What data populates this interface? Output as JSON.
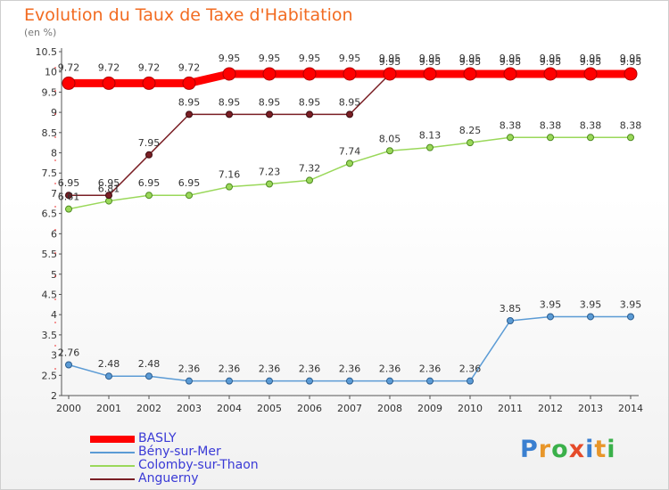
{
  "header": {
    "title": "Evolution du Taux de Taxe d'Habitation",
    "unit": "(en %)"
  },
  "brand": {
    "letters": [
      "P",
      "r",
      "o",
      "x",
      "i",
      "t",
      "i"
    ],
    "colors": [
      "#3a7fd0",
      "#e8962a",
      "#3ab04a",
      "#e54b2a",
      "#3a7fd0",
      "#e8962a",
      "#3ab04a"
    ]
  },
  "chart_data": {
    "type": "line",
    "x": [
      "2000",
      "2001",
      "2002",
      "2003",
      "2004",
      "2005",
      "2006",
      "2007",
      "2008",
      "2009",
      "2010",
      "2011",
      "2012",
      "2013",
      "2014"
    ],
    "ylim": [
      2,
      10.5
    ],
    "yticks": [
      "2",
      "2.5",
      "3",
      "3.5",
      "4",
      "4.5",
      "5",
      "5.5",
      "6",
      "6.5",
      "7",
      "7.5",
      "8",
      "8.5",
      "9",
      "9.5",
      "10",
      "10.5"
    ],
    "grid": false,
    "legend_position": "bottom",
    "series": [
      {
        "name": "BASLY",
        "color": "#ff0000",
        "values": [
          9.72,
          9.72,
          9.72,
          9.72,
          9.95,
          9.95,
          9.95,
          9.95,
          9.95,
          9.95,
          9.95,
          9.95,
          9.95,
          9.95,
          9.95
        ],
        "labels": [
          "9.72",
          "9.72",
          "9.72",
          "9.72",
          "9.95",
          "9.95",
          "9.95",
          "9.95",
          "9.95",
          "9.95",
          "9.95",
          "9.95",
          "9.95",
          "9.95",
          "9.95"
        ]
      },
      {
        "name": "Bény-sur-Mer",
        "color": "#5b9bd5",
        "values": [
          2.76,
          2.48,
          2.48,
          2.36,
          2.36,
          2.36,
          2.36,
          2.36,
          2.36,
          2.36,
          2.36,
          3.85,
          3.95,
          3.95,
          3.95
        ],
        "labels": [
          "2.76",
          "2.48",
          "2.48",
          "2.36",
          "2.36",
          "2.36",
          "2.36",
          "2.36",
          "2.36",
          "2.36",
          "2.36",
          "3.85",
          "3.95",
          "3.95",
          "3.95"
        ]
      },
      {
        "name": "Colomby-sur-Thaon",
        "color": "#9ad85a",
        "values": [
          6.61,
          6.81,
          6.95,
          6.95,
          7.16,
          7.23,
          7.32,
          7.74,
          8.05,
          8.13,
          8.25,
          8.38,
          8.38,
          8.38,
          8.38
        ],
        "labels": [
          "6.61",
          "6.81",
          "6.95",
          "6.95",
          "7.16",
          "7.23",
          "7.32",
          "7.74",
          "8.05",
          "8.13",
          "8.25",
          "8.38",
          "8.38",
          "8.38",
          "8.38"
        ]
      },
      {
        "name": "Anguerny",
        "color": "#7a1f25",
        "values": [
          6.95,
          6.95,
          7.95,
          8.95,
          8.95,
          8.95,
          8.95,
          8.95,
          9.95,
          9.95,
          9.95,
          9.95,
          9.95,
          9.95,
          9.95
        ],
        "labels": [
          "6.95",
          "6.95",
          "7.95",
          "8.95",
          "8.95",
          "8.95",
          "8.95",
          "8.95",
          "9.95",
          "9.95",
          "9.95",
          "9.95",
          "9.95",
          "9.95",
          "9.95"
        ]
      }
    ]
  }
}
